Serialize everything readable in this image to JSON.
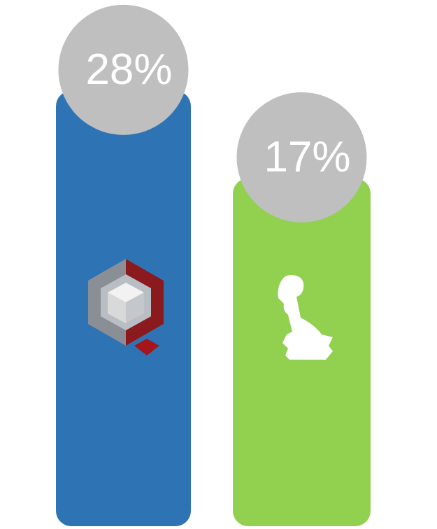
{
  "chart_data": {
    "type": "bar",
    "values": [
      28,
      17
    ],
    "value_labels": [
      "28%",
      "17%"
    ],
    "colors": [
      "#2e74b5",
      "#92d050"
    ],
    "bubble_color": "#bfbfbf"
  }
}
